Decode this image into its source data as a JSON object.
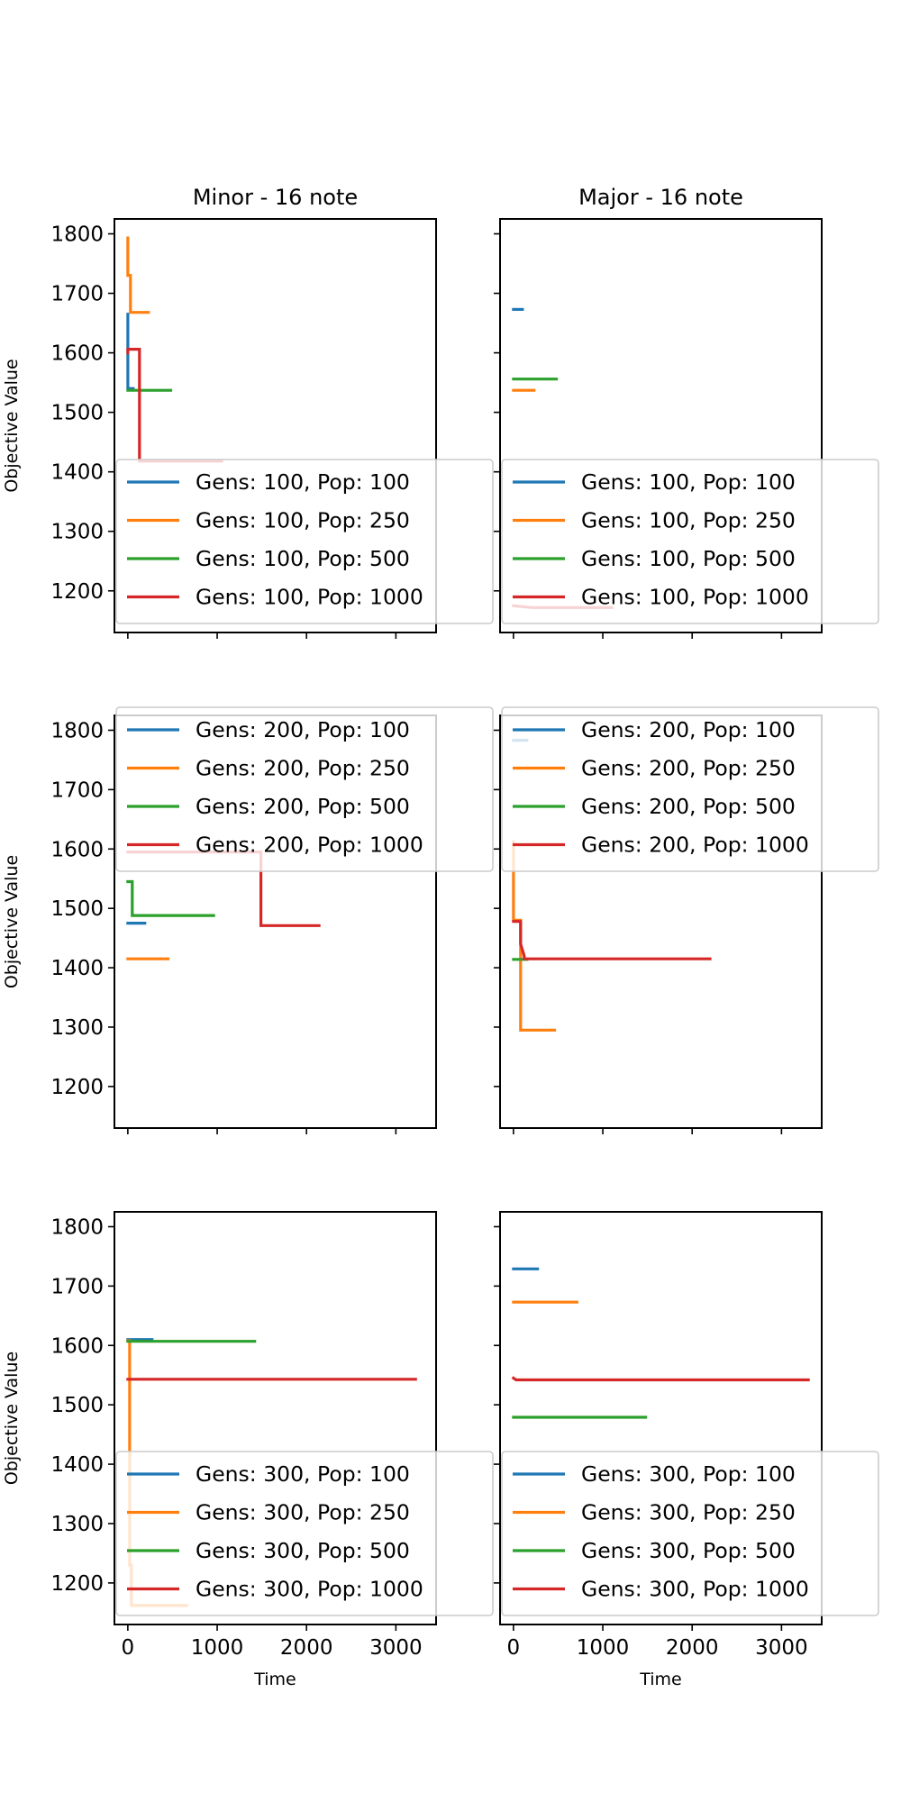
{
  "chart_data": {
    "type": "line",
    "layout": "3 rows x 2 columns, shared axes",
    "column_titles": [
      "Minor - 16 note",
      "Major - 16 note"
    ],
    "xlabel": "Time",
    "ylabel": "Objective Value",
    "xlim": [
      -150,
      3450
    ],
    "ylim": [
      1130,
      1825
    ],
    "xticks": [
      0,
      1000,
      2000,
      3000
    ],
    "yticks": [
      1200,
      1300,
      1400,
      1500,
      1600,
      1700,
      1800
    ],
    "colors": {
      "pop100": "#1f77b4",
      "pop250": "#ff7f0e",
      "pop500": "#2ca02c",
      "pop1000": "#d62728"
    },
    "panels": [
      {
        "id": "minor-gens100",
        "row": 0,
        "col": 0,
        "legend_loc": "lower right",
        "series": [
          {
            "name": "Gens: 100, Pop: 100",
            "color": "#1f77b4",
            "x": [
              0,
              0,
              60
            ],
            "y": [
              1665,
              1540,
              1540
            ]
          },
          {
            "name": "Gens: 100, Pop: 250",
            "color": "#ff7f0e",
            "x": [
              0,
              0,
              30,
              30,
              230
            ],
            "y": [
              1793,
              1730,
              1730,
              1668,
              1668
            ]
          },
          {
            "name": "Gens: 100, Pop: 500",
            "color": "#2ca02c",
            "x": [
              0,
              480
            ],
            "y": [
              1537,
              1537
            ]
          },
          {
            "name": "Gens: 100, Pop: 1000",
            "color": "#d62728",
            "x": [
              0,
              0,
              130,
              130,
              1050
            ],
            "y": [
              1600,
              1606,
              1606,
              1418,
              1418
            ]
          }
        ]
      },
      {
        "id": "major-gens100",
        "row": 0,
        "col": 1,
        "legend_loc": "lower right",
        "series": [
          {
            "name": "Gens: 100, Pop: 100",
            "color": "#1f77b4",
            "x": [
              0,
              100
            ],
            "y": [
              1673,
              1673
            ]
          },
          {
            "name": "Gens: 100, Pop: 250",
            "color": "#ff7f0e",
            "x": [
              0,
              230
            ],
            "y": [
              1537,
              1537
            ]
          },
          {
            "name": "Gens: 100, Pop: 500",
            "color": "#2ca02c",
            "x": [
              0,
              480
            ],
            "y": [
              1556,
              1556
            ]
          },
          {
            "name": "Gens: 100, Pop: 1000",
            "color": "#d62728",
            "x": [
              0,
              200,
              1100
            ],
            "y": [
              1175,
              1172,
              1172
            ]
          }
        ]
      },
      {
        "id": "minor-gens200",
        "row": 1,
        "col": 0,
        "legend_loc": "upper right",
        "series": [
          {
            "name": "Gens: 200, Pop: 100",
            "color": "#1f77b4",
            "x": [
              0,
              190
            ],
            "y": [
              1475,
              1475
            ]
          },
          {
            "name": "Gens: 200, Pop: 250",
            "color": "#ff7f0e",
            "x": [
              0,
              450
            ],
            "y": [
              1415,
              1415
            ]
          },
          {
            "name": "Gens: 200, Pop: 500",
            "color": "#2ca02c",
            "x": [
              0,
              0,
              50,
              50,
              960
            ],
            "y": [
              1545,
              1545,
              1545,
              1488,
              1488
            ]
          },
          {
            "name": "Gens: 200, Pop: 1000",
            "color": "#d62728",
            "x": [
              0,
              1490,
              1490,
              2140
            ],
            "y": [
              1595,
              1595,
              1471,
              1471
            ]
          }
        ]
      },
      {
        "id": "major-gens200",
        "row": 1,
        "col": 1,
        "legend_loc": "upper right",
        "series": [
          {
            "name": "Gens: 200, Pop: 100",
            "color": "#1f77b4",
            "x": [
              0,
              150
            ],
            "y": [
              1783,
              1783
            ]
          },
          {
            "name": "Gens: 200, Pop: 250",
            "color": "#ff7f0e",
            "x": [
              0,
              0,
              80,
              80,
              460
            ],
            "y": [
              1612,
              1480,
              1480,
              1295,
              1295
            ]
          },
          {
            "name": "Gens: 200, Pop: 500",
            "color": "#2ca02c",
            "x": [
              0,
              150
            ],
            "y": [
              1414,
              1414
            ]
          },
          {
            "name": "Gens: 200, Pop: 1000",
            "color": "#d62728",
            "x": [
              0,
              80,
              80,
              120,
              120,
              2200
            ],
            "y": [
              1478,
              1478,
              1440,
              1420,
              1415,
              1415
            ]
          }
        ]
      },
      {
        "id": "minor-gens300",
        "row": 2,
        "col": 0,
        "legend_loc": "lower right",
        "series": [
          {
            "name": "Gens: 300, Pop: 100",
            "color": "#1f77b4",
            "x": [
              0,
              270
            ],
            "y": [
              1610,
              1610
            ]
          },
          {
            "name": "Gens: 300, Pop: 250",
            "color": "#ff7f0e",
            "x": [
              0,
              20,
              20,
              40,
              40,
              660
            ],
            "y": [
              1608,
              1608,
              1230,
              1230,
              1162,
              1162
            ]
          },
          {
            "name": "Gens: 300, Pop: 500",
            "color": "#2ca02c",
            "x": [
              0,
              1420
            ],
            "y": [
              1607,
              1607
            ]
          },
          {
            "name": "Gens: 300, Pop: 1000",
            "color": "#d62728",
            "x": [
              0,
              3220
            ],
            "y": [
              1543,
              1543
            ]
          }
        ]
      },
      {
        "id": "major-gens300",
        "row": 2,
        "col": 1,
        "legend_loc": "lower right",
        "series": [
          {
            "name": "Gens: 300, Pop: 100",
            "color": "#1f77b4",
            "x": [
              0,
              270
            ],
            "y": [
              1729,
              1729
            ]
          },
          {
            "name": "Gens: 300, Pop: 250",
            "color": "#ff7f0e",
            "x": [
              0,
              710
            ],
            "y": [
              1673,
              1673
            ]
          },
          {
            "name": "Gens: 300, Pop: 500",
            "color": "#2ca02c",
            "x": [
              0,
              1480
            ],
            "y": [
              1479,
              1479
            ]
          },
          {
            "name": "Gens: 300, Pop: 1000",
            "color": "#d62728",
            "x": [
              0,
              0,
              30,
              3300
            ],
            "y": [
              1545,
              1545,
              1542,
              1542
            ]
          }
        ]
      }
    ]
  }
}
